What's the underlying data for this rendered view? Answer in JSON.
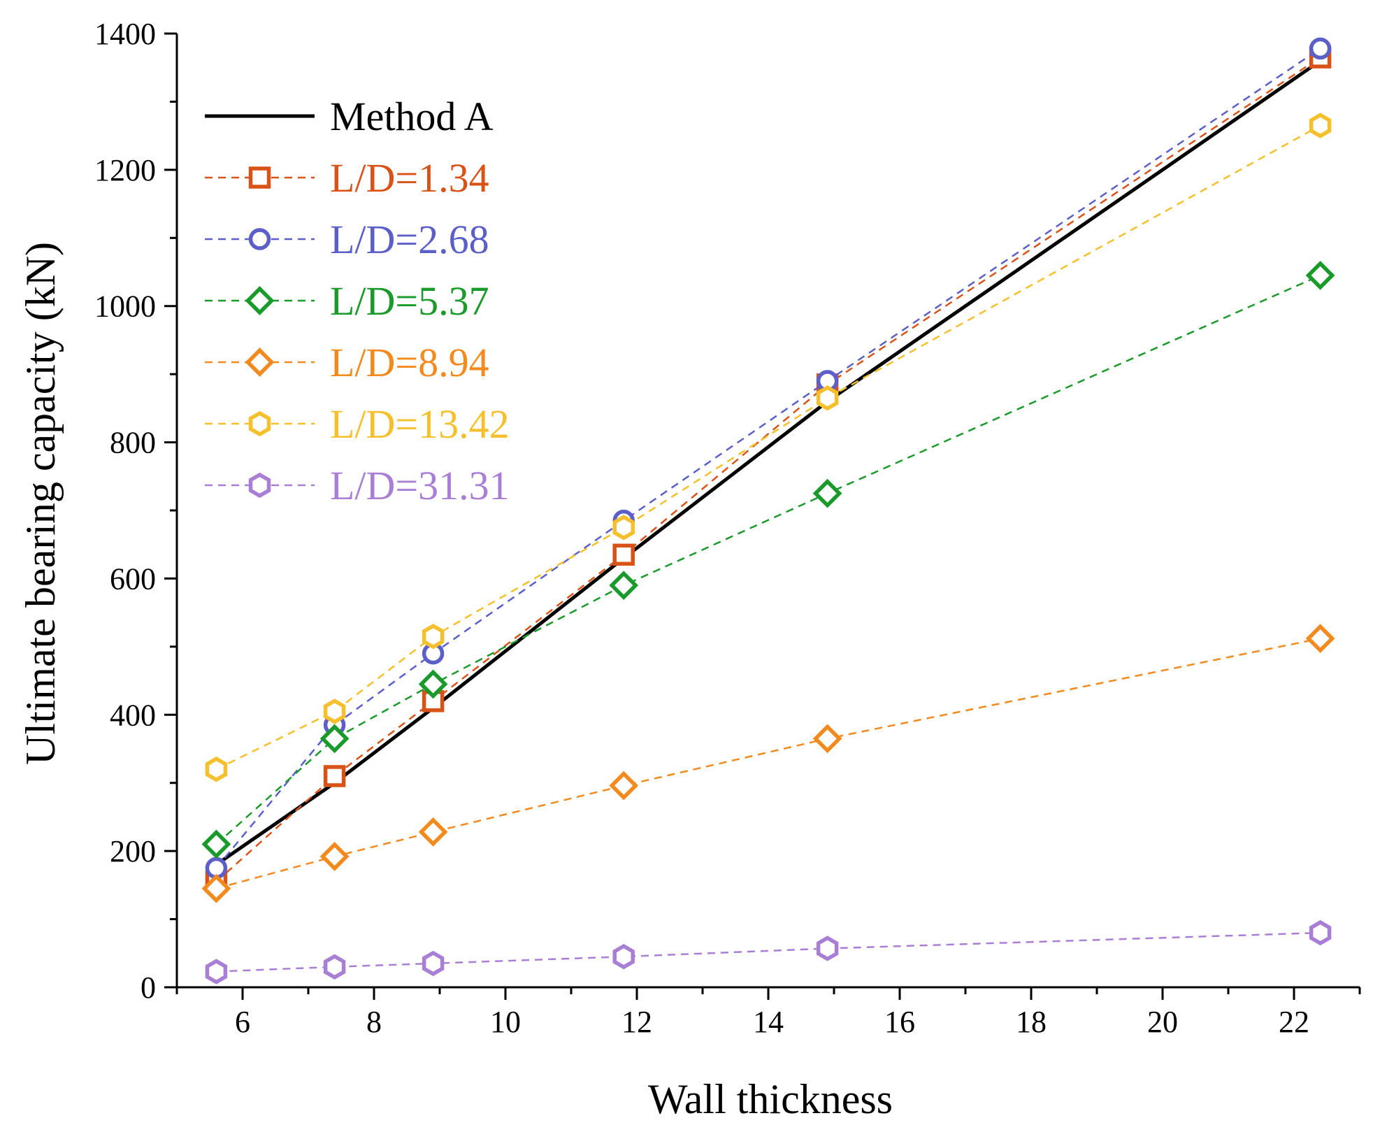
{
  "chart_data": {
    "type": "line",
    "title": "",
    "xlabel": "Wall thickness",
    "ylabel": "Ultimate bearing capacity (kN)",
    "xlim": [
      5,
      23
    ],
    "ylim": [
      0,
      1400
    ],
    "xticks": [
      6,
      8,
      10,
      12,
      14,
      16,
      18,
      20,
      22
    ],
    "yticks": [
      0,
      200,
      400,
      600,
      800,
      1000,
      1200,
      1400
    ],
    "legend_position": "top-left",
    "x": [
      5.6,
      7.4,
      8.9,
      11.8,
      14.9,
      22.4
    ],
    "series": [
      {
        "name": "Method A",
        "color": "#000000",
        "style": "solid",
        "marker": "none",
        "values": [
          180,
          300,
          410,
          630,
          860,
          1360
        ]
      },
      {
        "name": "L/D=1.34",
        "color": "#d95319",
        "style": "dashed",
        "marker": "square",
        "values": [
          155,
          310,
          420,
          635,
          885,
          1365
        ]
      },
      {
        "name": "L/D=2.68",
        "color": "#5b5fc7",
        "style": "dashed",
        "marker": "circle",
        "values": [
          175,
          385,
          490,
          685,
          890,
          1378
        ]
      },
      {
        "name": "L/D=5.37",
        "color": "#1a9a2a",
        "style": "dashed",
        "marker": "diamond",
        "values": [
          210,
          365,
          445,
          590,
          725,
          1045
        ]
      },
      {
        "name": "L/D=8.94",
        "color": "#f28a1e",
        "style": "dashed",
        "marker": "diamond",
        "values": [
          145,
          192,
          228,
          296,
          365,
          512
        ]
      },
      {
        "name": "L/D=13.42",
        "color": "#f5c02b",
        "style": "dashed",
        "marker": "hexagon",
        "values": [
          320,
          405,
          515,
          675,
          865,
          1265
        ]
      },
      {
        "name": "L/D=31.31",
        "color": "#a97fd6",
        "style": "dashed",
        "marker": "hexagon",
        "values": [
          23,
          30,
          35,
          45,
          57,
          80
        ]
      }
    ]
  }
}
